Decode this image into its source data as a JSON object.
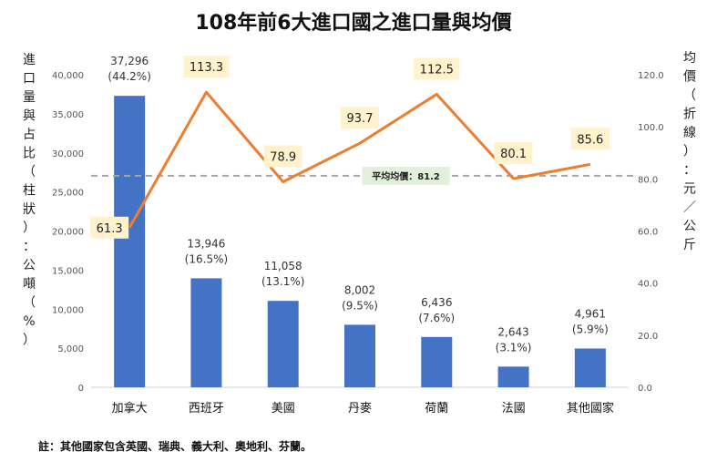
{
  "chart_data": {
    "type": "bar",
    "title": "108年前6大進口國之進口量與均價",
    "categories": [
      "加拿大",
      "西班牙",
      "美國",
      "丹麥",
      "荷蘭",
      "法國",
      "其他國家"
    ],
    "series": [
      {
        "type": "bar",
        "axis": "left",
        "values": [
          37296,
          13946,
          11058,
          8002,
          6436,
          2643,
          4961
        ],
        "value_labels": [
          "37,296",
          "13,946",
          "11,058",
          "8,002",
          "6,436",
          "2,643",
          "4,961"
        ],
        "share_labels": [
          "(44.2%)",
          "(16.5%)",
          "(13.1%)",
          "(9.5%)",
          "(7.6%)",
          "(3.1%)",
          "(5.9%)"
        ],
        "color": "#4472C4"
      },
      {
        "type": "line",
        "axis": "right",
        "values": [
          61.3,
          113.3,
          78.9,
          93.7,
          112.5,
          80.1,
          85.6
        ],
        "value_labels": [
          "61.3",
          "113.3",
          "78.9",
          "93.7",
          "112.5",
          "80.1",
          "85.6"
        ],
        "color": "#ED7D31",
        "label_bg": "#FFF2CC"
      }
    ],
    "reference_line": {
      "axis": "right",
      "value": 81.2,
      "label": "平均均價：81.2",
      "color": "#A6A6A6",
      "label_bg": "#E2EFDA"
    },
    "ylabel_left": "進口量與占比（柱狀）：公噸（%）",
    "ylabel_right": "均價（折線）：元／公斤",
    "ylim_left": [
      0,
      40000
    ],
    "ylim_right": [
      0,
      120
    ],
    "yticks_left": [
      "0",
      "5,000",
      "10,000",
      "15,000",
      "20,000",
      "25,000",
      "30,000",
      "35,000",
      "40,000"
    ],
    "yticks_right": [
      "0.0",
      "20.0",
      "40.0",
      "60.0",
      "80.0",
      "100.0",
      "120.0"
    ],
    "note": "註：其他國家包含英國、瑞典、義大利、奧地利、芬蘭。"
  }
}
